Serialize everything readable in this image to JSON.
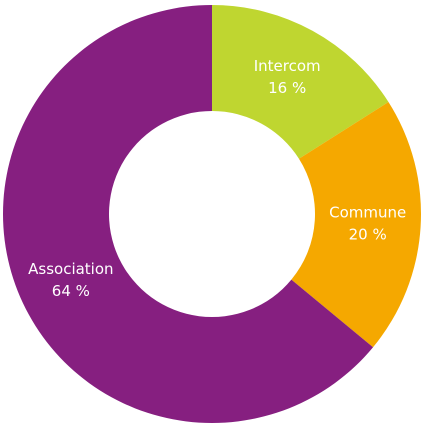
{
  "chart_data": {
    "type": "donut",
    "categories": [
      "Intercom",
      "Commune",
      "Association"
    ],
    "values": [
      16,
      20,
      64
    ],
    "value_labels": [
      "16 %",
      "20 %",
      "64 %"
    ],
    "colors": [
      "#bfd630",
      "#f5a800",
      "#861f80"
    ]
  }
}
